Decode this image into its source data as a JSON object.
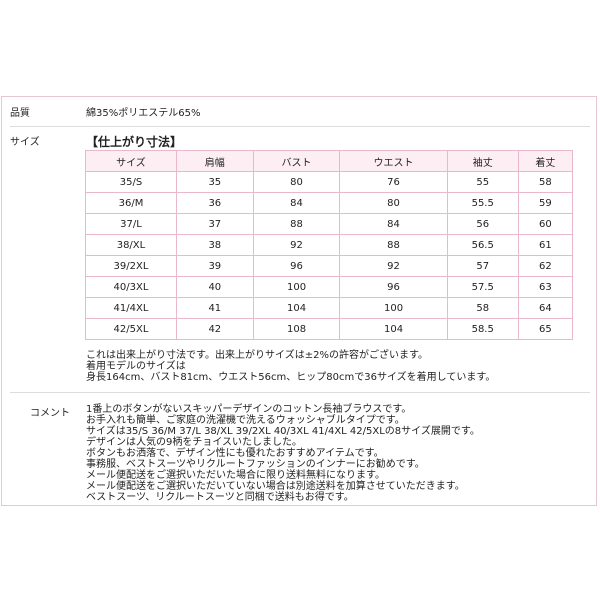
{
  "quality": {
    "label": "品質",
    "value": "綿35%ポリエステル65%"
  },
  "size": {
    "label": "サイズ",
    "title": "【仕上がり寸法】",
    "headers": [
      "サイズ",
      "肩幅",
      "バスト",
      "ウエスト",
      "袖丈",
      "着丈"
    ],
    "rows": [
      [
        "35/S",
        "35",
        "80",
        "76",
        "55",
        "58"
      ],
      [
        "36/M",
        "36",
        "84",
        "80",
        "55.5",
        "59"
      ],
      [
        "37/L",
        "37",
        "88",
        "84",
        "56",
        "60"
      ],
      [
        "38/XL",
        "38",
        "92",
        "88",
        "56.5",
        "61"
      ],
      [
        "39/2XL",
        "39",
        "96",
        "92",
        "57",
        "62"
      ],
      [
        "40/3XL",
        "40",
        "100",
        "96",
        "57.5",
        "63"
      ],
      [
        "41/4XL",
        "41",
        "104",
        "100",
        "58",
        "64"
      ],
      [
        "42/5XL",
        "42",
        "108",
        "104",
        "58.5",
        "65"
      ]
    ],
    "notes": [
      "これは出来上がり寸法です。出来上がりサイズは±2%の許容がございます。",
      "着用モデルのサイズは",
      "身長164cm、バスト81cm、ウエスト56cm、ヒップ80cmで36サイズを着用しています。"
    ]
  },
  "comment": {
    "label": "コメント",
    "lines": [
      "1番上のボタンがないスキッパーデザインのコットン長袖ブラウスです。",
      "お手入れも簡単、ご家庭の洗濯機で洗えるウォッシャブルタイプです。",
      "サイズは35/S 36/M 37/L 38/XL 39/2XL 40/3XL 41/4XL 42/5XLの8サイズ展開です。",
      "デザインは人気の9柄をチョイスいたしました。",
      "ボタンもお洒落で、デザイン性にも優れたおすすめアイテムです。",
      "事務服、ベストスーツやリクルートファッションのインナーにお勧めです。",
      "メール便配送をご選択いただいた場合に限り送料無料になります。",
      "メール便配送をご選択いただいていない場合は別途送料を加算させていただきます。",
      "ベストスーツ、リクルートスーツと同梱で送料もお得です。"
    ]
  }
}
